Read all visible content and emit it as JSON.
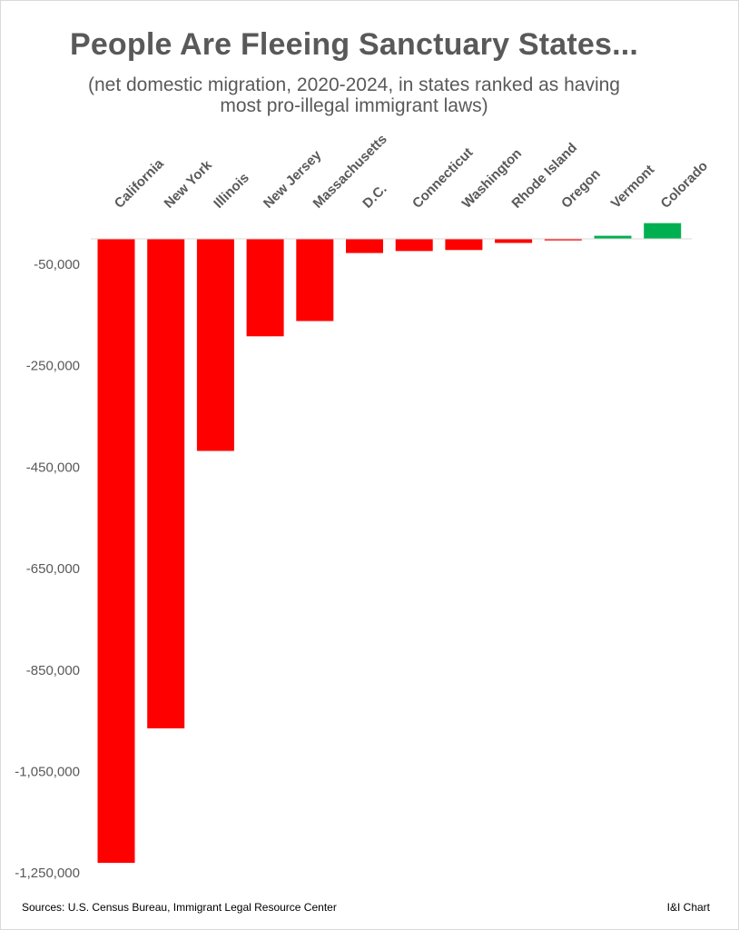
{
  "chart_data": {
    "type": "bar",
    "title": "People Are Fleeing Sanctuary States...",
    "subtitle_lines": [
      "(net domestic migration, 2020-2024, in states ranked as having",
      "most pro-illegal immigrant laws)"
    ],
    "categories": [
      "California",
      "New York",
      "Illinois",
      "New Jersey",
      "Massachusetts",
      "D.C.",
      "Connecticut",
      "Washington",
      "Rhode Island",
      "Oregon",
      "Vermont",
      "Colorado"
    ],
    "values": [
      -1230000,
      -965000,
      -418000,
      -192000,
      -162000,
      -28000,
      -24000,
      -22000,
      -8000,
      -3000,
      6000,
      31000
    ],
    "yticks": [
      -50000,
      -250000,
      -450000,
      -650000,
      -850000,
      -1050000,
      -1250000
    ],
    "ytick_labels": [
      "-50,000",
      "-250,000",
      "-450,000",
      "-650,000",
      "-850,000",
      "-1,050,000",
      "-1,250,000"
    ],
    "ylim": [
      -1250000,
      0
    ],
    "colors": {
      "negative": "#ff0000",
      "positive": "#00b050",
      "axis": "#d9d9d9",
      "text": "#595959"
    },
    "xlabel": "",
    "ylabel": "",
    "grid": false,
    "legend": "none"
  },
  "footer": {
    "sources": "Sources: U.S. Census Bureau, Immigrant Legal Resource Center",
    "credit": "I&I Chart"
  }
}
